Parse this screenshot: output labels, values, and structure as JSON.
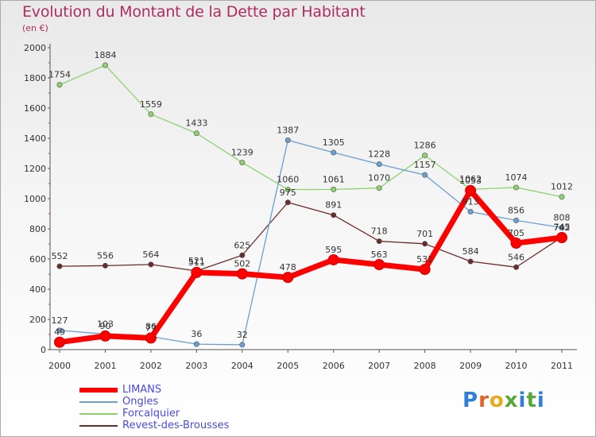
{
  "page": {
    "title": "Evolution du Montant de la Dette par Habitant",
    "subtitle": "(en €)",
    "brand": "Proxiti"
  },
  "chart_data": {
    "type": "line",
    "title": "Evolution du Montant de la Dette par Habitant",
    "subtitle": "(en €)",
    "xlabel": "",
    "ylabel": "",
    "ylim": [
      0,
      2000
    ],
    "yticks": [
      0,
      200,
      400,
      600,
      800,
      1000,
      1200,
      1400,
      1600,
      1800,
      2000
    ],
    "grid": false,
    "legend_position": "bottom-left",
    "categories": [
      "2000",
      "2001",
      "2002",
      "2003",
      "2004",
      "2005",
      "2006",
      "2007",
      "2008",
      "2009",
      "2010",
      "2011"
    ],
    "series": [
      {
        "name": "LIMANS",
        "color": "#ff0000",
        "values": [
          49,
          90,
          77,
          511,
          502,
          478,
          595,
          563,
          531,
          1053,
          705,
          742
        ],
        "labels": [
          "49",
          "90",
          "77",
          "511",
          "502",
          "478",
          "595",
          "563",
          "531",
          "1053",
          "705",
          "742"
        ]
      },
      {
        "name": "Ongles",
        "color": "#6b9fcf",
        "values": [
          127,
          103,
          86,
          36,
          32,
          1387,
          1305,
          1228,
          1157,
          913,
          856,
          808
        ],
        "labels": [
          "127",
          "103",
          "86",
          "36",
          "32",
          "1387",
          "1305",
          "1228",
          "1157",
          "913",
          "856",
          "808"
        ]
      },
      {
        "name": "Forcalquier",
        "color": "#8fd16f",
        "values": [
          1754,
          1884,
          1559,
          1433,
          1239,
          1060,
          1061,
          1070,
          1286,
          1062,
          1074,
          1012
        ],
        "labels": [
          "1754",
          "1884",
          "1559",
          "1433",
          "1239",
          "1060",
          "1061",
          "1070",
          "1286",
          "1062",
          "1074",
          "1012"
        ]
      },
      {
        "name": "Revest-des-Brousses",
        "color": "#6b2c2c",
        "values": [
          552,
          556,
          564,
          521,
          625,
          975,
          891,
          718,
          701,
          584,
          546,
          745
        ],
        "labels": [
          "552",
          "556",
          "564",
          "521",
          "625",
          "975",
          "891",
          "718",
          "701",
          "584",
          "546",
          "745"
        ]
      }
    ]
  }
}
